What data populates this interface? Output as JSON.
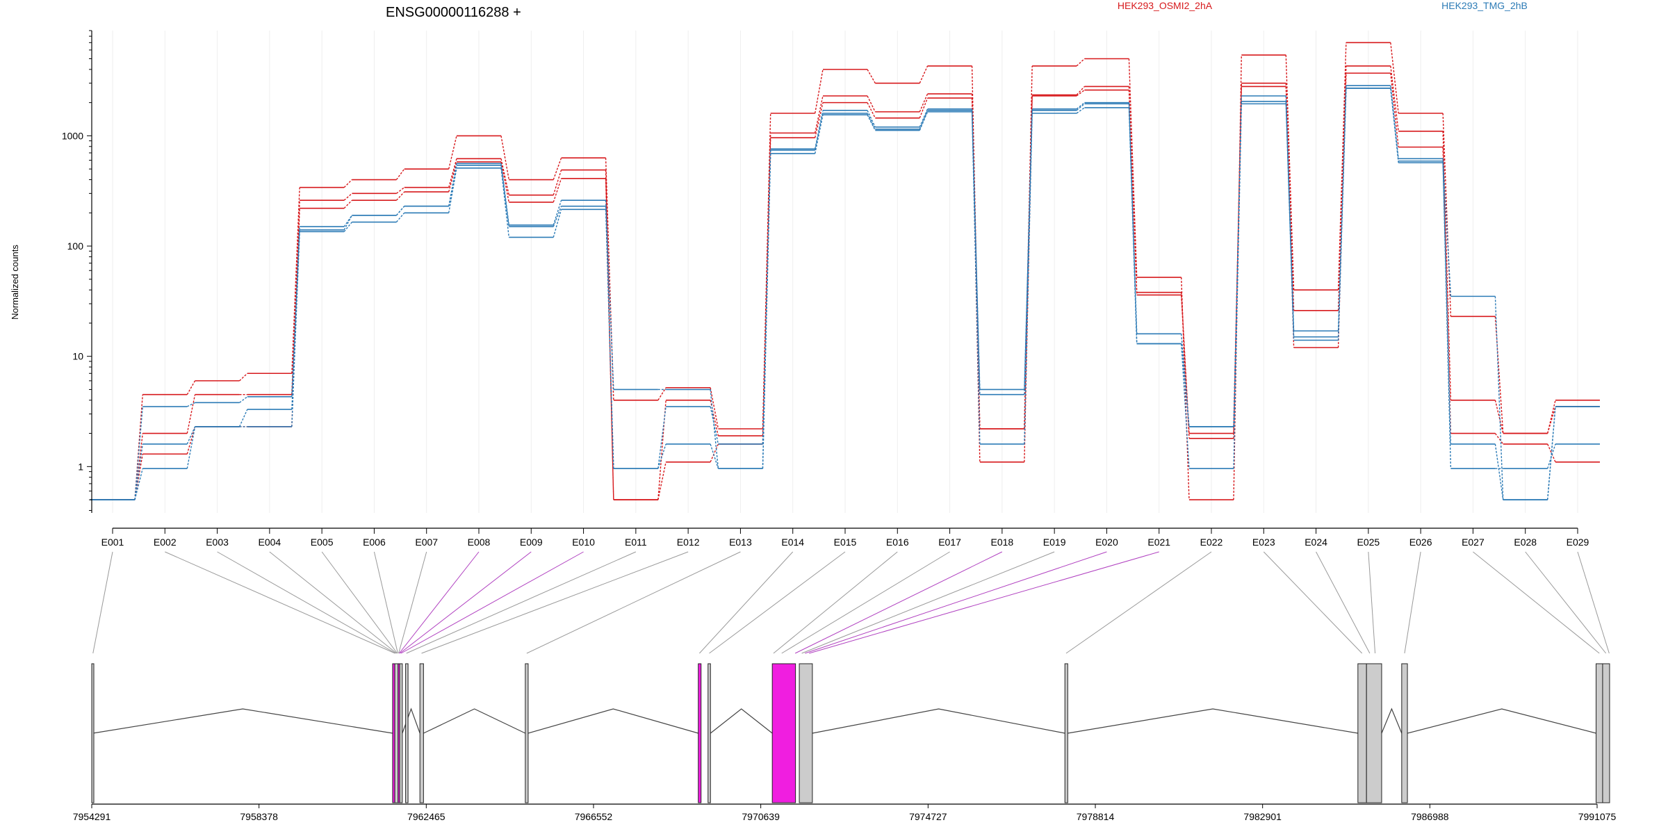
{
  "chart_data": [
    {
      "type": "line",
      "title": "ENSG00000116288 +",
      "ylabel": "Normalized counts",
      "yscale": "log",
      "ylim": [
        0.38,
        9000
      ],
      "yticks": [
        1,
        10,
        100,
        1000
      ],
      "ytick_labels": [
        "1",
        "10",
        "100",
        "1000"
      ],
      "grid": "vertical",
      "legend_placement": "top",
      "categories": [
        "E001",
        "E002",
        "E003",
        "E004",
        "E005",
        "E006",
        "E007",
        "E008",
        "E009",
        "E010",
        "E011",
        "E012",
        "E013",
        "E014",
        "E015",
        "E016",
        "E017",
        "E018",
        "E019",
        "E020",
        "E021",
        "E022",
        "E023",
        "E024",
        "E025",
        "E026",
        "E027",
        "E028",
        "E029"
      ],
      "colors": {
        "HEK293_OSMI2_2hA": "#d7191c",
        "HEK293_TMG_2hB": "#2c7bb6"
      },
      "series": [
        {
          "name": "HEK293_OSMI2_2hA",
          "group": "HEK293_OSMI2_2hA",
          "values": [
            0.5,
            4.5,
            6,
            7,
            340,
            400,
            500,
            1000,
            400,
            630,
            4,
            5.2,
            2.2,
            1600,
            4000,
            3000,
            4300,
            2.2,
            4300,
            5000,
            52,
            0.5,
            5400,
            40,
            7000,
            1600,
            23,
            2,
            4
          ]
        },
        {
          "name": "HEK293_OSMI2_2hA",
          "group": "HEK293_OSMI2_2hA",
          "values": [
            0.5,
            2,
            4.5,
            4.5,
            260,
            300,
            340,
            620,
            290,
            490,
            0.5,
            4,
            1.9,
            1060,
            2300,
            1650,
            2400,
            2.2,
            2350,
            2800,
            38,
            2,
            3000,
            26,
            4300,
            1100,
            4,
            2,
            3.5
          ]
        },
        {
          "name": "HEK293_OSMI2_2hA",
          "group": "HEK293_OSMI2_2hA",
          "values": [
            0.5,
            1.3,
            2.3,
            2.3,
            220,
            260,
            310,
            580,
            250,
            410,
            0.5,
            1.1,
            1.6,
            960,
            2000,
            1450,
            2200,
            1.1,
            2300,
            2600,
            36,
            1.8,
            2800,
            12,
            3700,
            790,
            2,
            1.6,
            1.1
          ]
        },
        {
          "name": "HEK293_TMG_2hB",
          "group": "HEK293_TMG_2hB",
          "values": [
            0.5,
            3.5,
            3.8,
            4.3,
            150,
            190,
            230,
            560,
            155,
            260,
            5,
            5,
            0.96,
            760,
            1700,
            1200,
            1750,
            5,
            1750,
            2000,
            16,
            2.3,
            2300,
            17,
            2850,
            620,
            35,
            0.5,
            3.5
          ]
        },
        {
          "name": "HEK293_TMG_2hB",
          "group": "HEK293_TMG_2hB",
          "values": [
            0.5,
            1.6,
            2.3,
            3.3,
            140,
            190,
            230,
            540,
            150,
            230,
            0.96,
            3.5,
            1.6,
            740,
            1600,
            1150,
            1700,
            4.5,
            1700,
            1950,
            13,
            2.3,
            2050,
            15,
            2700,
            590,
            1.6,
            0.5,
            3.5
          ]
        },
        {
          "name": "HEK293_TMG_2hB",
          "group": "HEK293_TMG_2hB",
          "values": [
            0.5,
            0.96,
            2.3,
            2.3,
            135,
            165,
            200,
            510,
            120,
            215,
            0.96,
            1.6,
            0.96,
            690,
            1550,
            1120,
            1650,
            1.6,
            1600,
            1800,
            13,
            0.96,
            1950,
            14,
            2700,
            570,
            0.96,
            0.96,
            1.6
          ]
        }
      ]
    },
    {
      "type": "gene_model",
      "x_ticks": [
        7954291,
        7958378,
        7962465,
        7966552,
        7970639,
        7974727,
        7978814,
        7982901,
        7986988,
        7991075
      ],
      "exon_fill": "#cccccc",
      "highlight_fill": "#f01ee0"
    }
  ]
}
